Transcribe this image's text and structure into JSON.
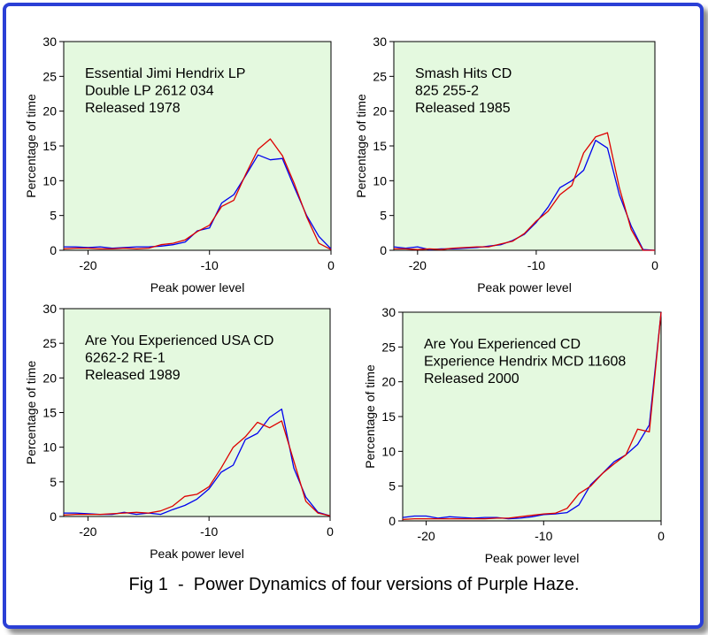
{
  "caption": "Fig 1  -  Power Dynamics of four versions of Purple Haze.",
  "colors": {
    "frame": "#2a3fd6",
    "plot_bg": "#e4f9df",
    "series_a": "#0000ee",
    "series_b": "#dd0000"
  },
  "chart_data": [
    {
      "type": "line",
      "annotation": [
        "Essential Jimi Hendrix LP",
        "Double LP 2612 034",
        "Released 1978"
      ],
      "xlabel": "Peak power level",
      "ylabel": "Percentage of time",
      "xlim": [
        -22,
        0
      ],
      "ylim": [
        0,
        30
      ],
      "xticks": [
        -20,
        -10,
        0
      ],
      "yticks": [
        0,
        5,
        10,
        15,
        20,
        25,
        30
      ],
      "grid": false,
      "x": [
        -22,
        -21,
        -20,
        -19,
        -18,
        -17,
        -16,
        -15,
        -14,
        -13,
        -12,
        -11,
        -10,
        -9,
        -8,
        -7,
        -6,
        -5,
        -4,
        -3,
        -2,
        -1,
        0
      ],
      "series": [
        {
          "color": "blue",
          "values": [
            0.5,
            0.5,
            0.4,
            0.5,
            0.3,
            0.4,
            0.5,
            0.5,
            0.6,
            0.8,
            1.2,
            2.8,
            3.2,
            6.8,
            8.0,
            10.8,
            13.7,
            13.0,
            13.2,
            9.0,
            5.0,
            2.0,
            0.2
          ]
        },
        {
          "color": "red",
          "values": [
            0.2,
            0.3,
            0.3,
            0.2,
            0.2,
            0.3,
            0.2,
            0.3,
            0.8,
            1.0,
            1.5,
            2.7,
            3.6,
            6.3,
            7.2,
            11.0,
            14.5,
            16.0,
            13.6,
            9.5,
            4.8,
            1.0,
            0.1
          ]
        }
      ]
    },
    {
      "type": "line",
      "annotation": [
        "Smash Hits CD",
        "825 255-2",
        "Released 1985"
      ],
      "xlabel": "Peak power level",
      "ylabel": "Percentage of time",
      "xlim": [
        -22,
        0
      ],
      "ylim": [
        0,
        30
      ],
      "xticks": [
        -20,
        -10,
        0
      ],
      "yticks": [
        0,
        5,
        10,
        15,
        20,
        25,
        30
      ],
      "grid": false,
      "x": [
        -22,
        -21,
        -20,
        -19,
        -18,
        -17,
        -16,
        -15,
        -14,
        -13,
        -12,
        -11,
        -10,
        -9,
        -8,
        -7,
        -6,
        -5,
        -4,
        -3,
        -2,
        -1,
        0
      ],
      "series": [
        {
          "color": "blue",
          "values": [
            0.5,
            0.3,
            0.5,
            0.1,
            0.2,
            0.2,
            0.3,
            0.4,
            0.6,
            0.8,
            1.4,
            2.3,
            4.0,
            6.2,
            9.0,
            10.0,
            11.5,
            15.8,
            14.7,
            8.0,
            3.5,
            0.1,
            0.0
          ]
        },
        {
          "color": "red",
          "values": [
            0.2,
            0.2,
            0.1,
            0.2,
            0.1,
            0.3,
            0.4,
            0.5,
            0.5,
            0.9,
            1.3,
            2.4,
            4.2,
            5.6,
            8.0,
            9.3,
            14.0,
            16.3,
            16.9,
            9.0,
            3.0,
            0.0,
            0.0
          ]
        }
      ]
    },
    {
      "type": "line",
      "annotation": [
        "Are You Experienced USA CD",
        "6262-2 RE-1",
        "Released 1989"
      ],
      "xlabel": "Peak power level",
      "ylabel": "Percentage of time",
      "xlim": [
        -22,
        0
      ],
      "ylim": [
        0,
        30
      ],
      "xticks": [
        -20,
        -10,
        0
      ],
      "yticks": [
        0,
        5,
        10,
        15,
        20,
        25,
        30
      ],
      "grid": false,
      "x": [
        -22,
        -21,
        -20,
        -19,
        -18,
        -17,
        -16,
        -15,
        -14,
        -13,
        -12,
        -11,
        -10,
        -9,
        -8,
        -7,
        -6,
        -5,
        -4,
        -3,
        -2,
        -1,
        0
      ],
      "series": [
        {
          "color": "blue",
          "values": [
            0.5,
            0.5,
            0.4,
            0.3,
            0.3,
            0.6,
            0.3,
            0.5,
            0.3,
            1.0,
            1.6,
            2.5,
            4.0,
            6.4,
            7.4,
            11.1,
            12.0,
            14.3,
            15.5,
            7.0,
            2.8,
            0.6,
            0.1
          ]
        },
        {
          "color": "red",
          "values": [
            0.2,
            0.3,
            0.3,
            0.3,
            0.4,
            0.5,
            0.6,
            0.5,
            0.8,
            1.5,
            2.9,
            3.2,
            4.3,
            7.0,
            10.0,
            11.5,
            13.6,
            12.8,
            13.8,
            8.0,
            2.2,
            0.5,
            0.1
          ]
        }
      ]
    },
    {
      "type": "line",
      "annotation": [
        "Are You Experienced  CD",
        "Experience Hendrix  MCD 11608",
        "Released 2000"
      ],
      "xlabel": "Peak power level",
      "ylabel": "Percentage of time",
      "xlim": [
        -22,
        0
      ],
      "ylim": [
        0,
        30
      ],
      "xticks": [
        -20,
        -10,
        0
      ],
      "yticks": [
        0,
        5,
        10,
        15,
        20,
        25,
        30
      ],
      "grid": false,
      "x": [
        -22,
        -21,
        -20,
        -19,
        -18,
        -17,
        -16,
        -15,
        -14,
        -13,
        -12,
        -11,
        -10,
        -9,
        -8,
        -7,
        -6,
        -5,
        -4,
        -3,
        -2,
        -1,
        0
      ],
      "series": [
        {
          "color": "blue",
          "values": [
            0.5,
            0.7,
            0.7,
            0.4,
            0.6,
            0.5,
            0.4,
            0.5,
            0.5,
            0.3,
            0.4,
            0.6,
            0.9,
            1.0,
            1.2,
            2.3,
            5.2,
            6.8,
            8.5,
            9.5,
            11.0,
            13.8,
            30.0
          ]
        },
        {
          "color": "red",
          "values": [
            0.2,
            0.3,
            0.3,
            0.3,
            0.3,
            0.3,
            0.3,
            0.3,
            0.4,
            0.4,
            0.6,
            0.8,
            1.0,
            1.1,
            1.8,
            3.9,
            5.0,
            6.8,
            8.2,
            9.5,
            13.2,
            12.8,
            30.0
          ]
        }
      ]
    }
  ]
}
